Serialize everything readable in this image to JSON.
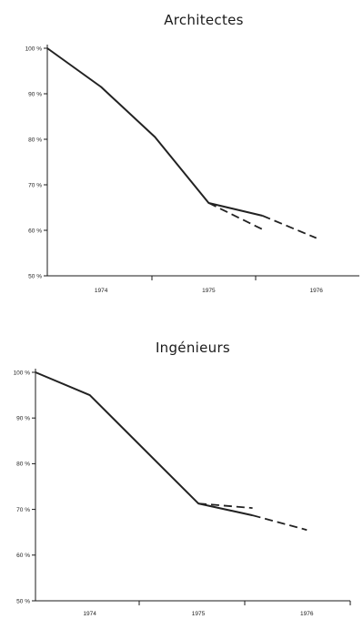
{
  "chart_data": [
    {
      "type": "line",
      "title": "Architectes",
      "xlabel": "",
      "ylabel": "",
      "x_ticks": [
        "1974",
        "1975",
        "1976"
      ],
      "y_ticks": [
        "100 %",
        "90 %",
        "80 %",
        "70 %",
        "60 %",
        "50 %"
      ],
      "xlim": [
        1973.5,
        1976.4
      ],
      "ylim": [
        50,
        100
      ],
      "grid": false,
      "series": [
        {
          "style": "solid",
          "color": "#222222",
          "x": [
            1973.5,
            1974,
            1974.5,
            1975,
            1975.5
          ],
          "y": [
            100,
            91.5,
            80.5,
            66,
            63.2
          ]
        },
        {
          "style": "dashed",
          "color": "#222222",
          "x": [
            1975.5,
            1976
          ],
          "y": [
            63.2,
            58.3
          ]
        },
        {
          "style": "dashed",
          "color": "#222222",
          "x": [
            1975,
            1975.5
          ],
          "y": [
            66,
            60.2
          ]
        }
      ]
    },
    {
      "type": "line",
      "title": "Ingénieurs",
      "xlabel": "",
      "ylabel": "",
      "x_ticks": [
        "1974",
        "1975",
        "1976"
      ],
      "y_ticks": [
        "100 %",
        "90 %",
        "80 %",
        "70 %",
        "60 %",
        "50 %"
      ],
      "xlim": [
        1973.5,
        1976.4
      ],
      "ylim": [
        50,
        100
      ],
      "grid": false,
      "series": [
        {
          "style": "solid",
          "color": "#222222",
          "x": [
            1973.5,
            1974,
            1975,
            1975.5
          ],
          "y": [
            100,
            95,
            71.3,
            68.7
          ]
        },
        {
          "style": "dashed",
          "color": "#222222",
          "x": [
            1975.5,
            1976
          ],
          "y": [
            68.7,
            65.5
          ]
        },
        {
          "style": "dashed",
          "color": "#222222",
          "x": [
            1975,
            1975.5
          ],
          "y": [
            71.3,
            70.3
          ]
        }
      ]
    }
  ]
}
